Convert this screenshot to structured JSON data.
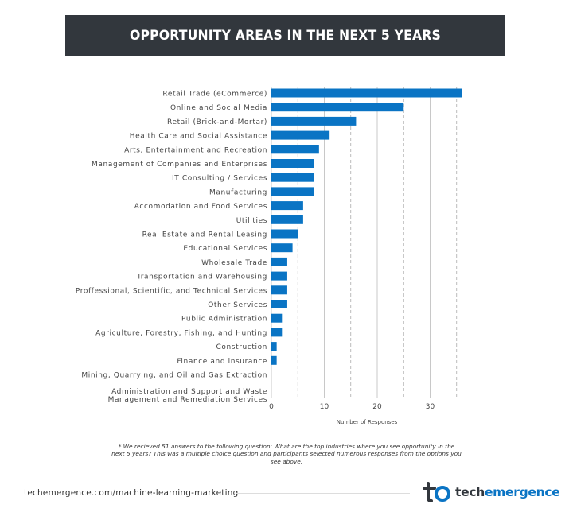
{
  "header": {
    "title": "OPPORTUNITY AREAS IN THE NEXT 5 YEARS"
  },
  "chart_data": {
    "type": "bar",
    "orientation": "horizontal",
    "categories": [
      "Retail Trade (eCommerce)",
      "Online and Social Media",
      "Retail (Brick-and-Mortar)",
      "Health Care and Social Assistance",
      "Arts, Entertainment and Recreation",
      "Management of Companies and Enterprises",
      "IT Consulting / Services",
      "Manufacturing",
      "Accomodation and Food Services",
      "Utilities",
      "Real Estate and Rental Leasing",
      "Educational Services",
      "Wholesale Trade",
      "Transportation and Warehousing",
      "Proffessional, Scientific, and Technical Services",
      "Other Services",
      "Public Administration",
      "Agriculture, Forestry, Fishing, and Hunting",
      "Construction",
      "Finance and insurance",
      "Mining, Quarrying, and Oil and Gas Extraction",
      "Administration and Support and Waste\nManagement and Remediation Services"
    ],
    "values": [
      36,
      25,
      16,
      11,
      9,
      8,
      8,
      8,
      6,
      6,
      5,
      4,
      3,
      3,
      3,
      3,
      2,
      2,
      1,
      1,
      0,
      0
    ],
    "xlabel": "Number of Responses",
    "xlim": [
      0,
      36
    ],
    "xticks": [
      0,
      10,
      20,
      30
    ],
    "grid": true,
    "bar_color": "#0a74c4"
  },
  "footnote": "* We recieved 51 answers to the following question: What are the top industries where you see opportunity in the next 5 years? This was a multiple choice question and participants selected numerous responses from the options you see above.",
  "footer": {
    "url": "techemergence.com/machine-learning-marketing",
    "logo_text_a": "tech",
    "logo_text_b": "emergence"
  },
  "colors": {
    "title_bg": "#32373d",
    "accent": "#0a74c4"
  }
}
